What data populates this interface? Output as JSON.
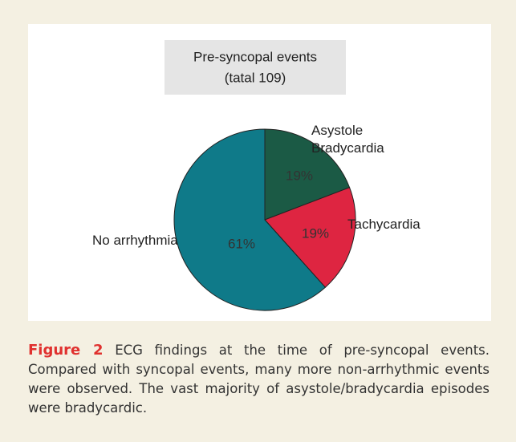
{
  "chart_data": {
    "type": "pie",
    "title": "Pre-syncopal events",
    "subtitle": "(tatal 109)",
    "categories": [
      "Asystole Bradycardia",
      "Tachycardia",
      "No arrhythmia"
    ],
    "values": [
      19,
      19,
      61
    ],
    "value_labels": [
      "19%",
      "19%",
      "61%"
    ],
    "colors": [
      "#1b5a45",
      "#de2541",
      "#0f7a89"
    ]
  },
  "caption": {
    "label": "Figure 2",
    "text": "ECG findings at the time of pre-syncopal events. Compared with syncopal events, many more non-arrhythmic events were observed. The vast majority of asystole/bradycardia episodes were bradycardic."
  }
}
